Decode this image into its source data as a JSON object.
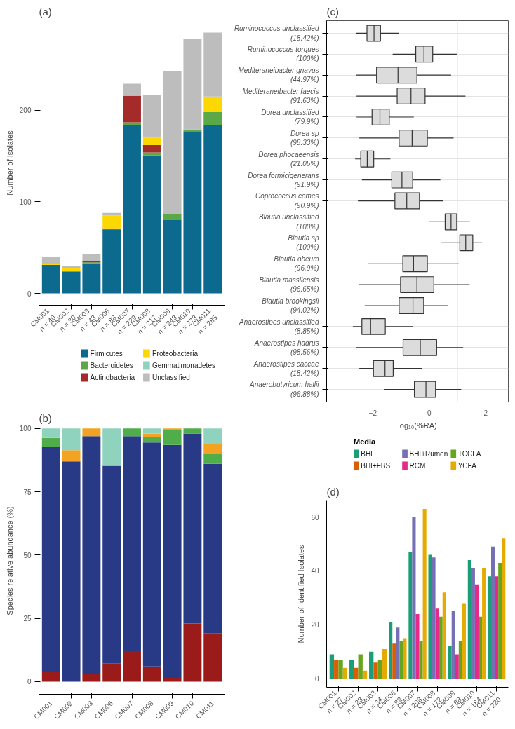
{
  "chart_data": [
    {
      "type": "bar",
      "title": "(a)",
      "stacked": true,
      "ylabel": "Number of Isolates",
      "categories": [
        "CM001\nn = 40",
        "CM002\nn = 30",
        "CM003\nn = 43",
        "CM006\nn = 88",
        "CM007\nn = 229",
        "CM008\nn = 217",
        "CM009\nn = 243",
        "CM010\nn = 278",
        "CM011\nn = 285"
      ],
      "series": [
        {
          "name": "Firmicutes",
          "color": "#0b6a8e",
          "values": [
            31,
            24,
            33,
            70,
            184,
            151,
            80,
            176,
            184
          ]
        },
        {
          "name": "Bacteroidetes",
          "color": "#5aa846",
          "values": [
            null,
            null,
            1,
            null,
            3,
            3,
            7,
            3,
            14
          ]
        },
        {
          "name": "Actinobacteria",
          "color": "#a52a2a",
          "values": [
            null,
            null,
            1,
            1,
            29,
            8,
            null,
            null,
            null
          ]
        },
        {
          "name": "Proteobacteria",
          "color": "#fdd800",
          "values": [
            1,
            4,
            null,
            14,
            1,
            8,
            null,
            null,
            17
          ]
        },
        {
          "name": "Gemmatimonadetes",
          "color": "#8fd3bf",
          "values": [
            null,
            null,
            null,
            null,
            null,
            null,
            null,
            null,
            null
          ]
        },
        {
          "name": "Unclassified",
          "color": "#bdbdbd",
          "values": [
            8,
            2,
            8,
            3,
            12,
            47,
            156,
            99,
            70
          ]
        }
      ],
      "ylim": [
        -13,
        298
      ],
      "yticks": [
        0,
        100,
        200
      ],
      "legend": "bottom"
    },
    {
      "type": "bar",
      "title": "(b)",
      "stacked": true,
      "ylabel": "Species relative abundance (%)",
      "categories": [
        "CM001",
        "CM002",
        "CM003",
        "CM006",
        "CM007",
        "CM008",
        "CM009",
        "CM010",
        "CM011"
      ],
      "series": [
        {
          "color": "#9b1b1b",
          "values": [
            3.7,
            null,
            3,
            7.1,
            12,
            6,
            1.5,
            23,
            19
          ]
        },
        {
          "color": "#283a86",
          "values": [
            89,
            87,
            94,
            78.2,
            85,
            88.5,
            92,
            75,
            67
          ]
        },
        {
          "color": "#4fae4a",
          "values": [
            3.6,
            null,
            null,
            null,
            3,
            2,
            6,
            2,
            4
          ]
        },
        {
          "color": "#f3a321",
          "values": [
            null,
            4.4,
            3,
            null,
            null,
            1.5,
            0.5,
            null,
            4
          ]
        },
        {
          "color": "#8fd3bf",
          "values": [
            3.7,
            8.6,
            null,
            14.7,
            null,
            2,
            null,
            null,
            6
          ]
        }
      ],
      "ylim": [
        -5,
        100.5
      ],
      "yticks": [
        0,
        25,
        50,
        75,
        100
      ]
    },
    {
      "type": "box",
      "title": "(c)",
      "orientation": "horizontal",
      "xlabel": "log₁₀(%RA)",
      "grid": true,
      "xlim": [
        -3.64,
        2.8
      ],
      "xticks": [
        -2,
        0,
        2
      ],
      "categories": [
        "Ruminococcus unclassified\n(18.42%)",
        "Ruminococcus torques\n(100%)",
        "Mediteraneibacter gnavus\n(44.97%)",
        "Mediteraneibacter faecis\n(91.63%)",
        "Dorea unclassified\n(79.9%)",
        "Dorea sp\n(98.33%)",
        "Dorea phocaeensis\n(21.05%)",
        "Dorea formicigenerans\n(91.9%)",
        "Coprococcus comes\n(90.9%)",
        "Blautia unclassified\n(100%)",
        "Blautia sp\n(100%)",
        "Blautia obeum\n(96.9%)",
        "Blautia massilensis\n(96.65%)",
        "Blautia brookingsii\n(94.02%)",
        "Anaerostipes unclassified\n(8.85%)",
        "Anaerostipes hadrus\n(98.56%)",
        "Anaerostipes caccae\n(18.42%)",
        "Anaerobutyricum hallii\n(96.88%)"
      ],
      "series": [
        {
          "color": "#dcdcdc",
          "boxes": [
            {
              "low": -2.61,
              "q1": -2.21,
              "median": -1.96,
              "q3": -1.73,
              "high": -1.09
            },
            {
              "low": -1.3,
              "q1": -0.48,
              "median": -0.19,
              "q3": 0.12,
              "high": 0.97
            },
            {
              "low": -2.59,
              "q1": -1.87,
              "median": -1.11,
              "q3": -0.44,
              "high": 0.77
            },
            {
              "low": -2.58,
              "q1": -1.14,
              "median": -0.65,
              "q3": -0.15,
              "high": 1.28
            },
            {
              "low": -2.58,
              "q1": -2.03,
              "median": -1.75,
              "q3": -1.42,
              "high": -0.55
            },
            {
              "low": -2.48,
              "q1": -1.07,
              "median": -0.61,
              "q3": -0.07,
              "high": 0.86
            },
            {
              "low": -2.63,
              "q1": -2.43,
              "median": -2.2,
              "q3": -1.97,
              "high": -1.38
            },
            {
              "low": -2.39,
              "q1": -1.33,
              "median": -0.97,
              "q3": -0.59,
              "high": 0.39
            },
            {
              "low": -2.53,
              "q1": -1.22,
              "median": -0.8,
              "q3": -0.35,
              "high": 0.5
            },
            {
              "low": 0,
              "q1": 0.56,
              "median": 0.77,
              "q3": 0.97,
              "high": 1.44
            },
            {
              "low": 0.43,
              "q1": 1.08,
              "median": 1.29,
              "q3": 1.54,
              "high": 1.87
            },
            {
              "low": -2.17,
              "q1": -0.94,
              "median": -0.56,
              "q3": -0.07,
              "high": 1.04
            },
            {
              "low": -2.49,
              "q1": -1.02,
              "median": -0.44,
              "q3": 0.16,
              "high": 1.43
            },
            {
              "low": -2.29,
              "q1": -1.07,
              "median": -0.58,
              "q3": -0.2,
              "high": 0.67
            },
            {
              "low": -2.71,
              "q1": -2.39,
              "median": -2.08,
              "q3": -1.56,
              "high": -0.58
            },
            {
              "low": -2.59,
              "q1": -0.93,
              "median": -0.32,
              "q3": 0.26,
              "high": 1.2
            },
            {
              "low": -2.48,
              "q1": -1.98,
              "median": -1.57,
              "q3": -1.28,
              "high": -0.26
            },
            {
              "low": -1.6,
              "q1": -0.53,
              "median": -0.12,
              "q3": 0.22,
              "high": 1.13
            }
          ]
        }
      ]
    },
    {
      "type": "bar",
      "title": "(d)",
      "ylabel": "Number of Identified Isolates",
      "legend_title": "Media",
      "legend": "top",
      "categories": [
        "CM001\nn = 27",
        "CM002\nn = 23",
        "CM003\nn = 34",
        "CM006\nn = 82",
        "CM007\nn = 208",
        "CM008\nn = 172",
        "CM009\nn = 88",
        "CM010\nn = 184",
        "CM011\nn = 220"
      ],
      "series": [
        {
          "name": "BHI",
          "color": "#1b9e77",
          "values": [
            9,
            7,
            10,
            21,
            47,
            46,
            12,
            44,
            38
          ]
        },
        {
          "name": "BHI+FBS",
          "color": "#d95f02",
          "values": [
            7,
            4,
            6,
            13,
            null,
            null,
            null,
            null,
            null
          ]
        },
        {
          "name": "BHI+Rumen",
          "color": "#7570b3",
          "values": [
            null,
            null,
            null,
            19,
            60,
            45,
            25,
            41,
            49
          ]
        },
        {
          "name": "RCM",
          "color": "#e7298a",
          "values": [
            null,
            null,
            null,
            null,
            24,
            26,
            9,
            35,
            38
          ]
        },
        {
          "name": "TCCFA",
          "color": "#66a61e",
          "values": [
            7,
            9,
            7,
            14,
            14,
            23,
            14,
            23,
            43
          ]
        },
        {
          "name": "YCFA",
          "color": "#e6ab02",
          "values": [
            4,
            3,
            11,
            15,
            63,
            32,
            28,
            41,
            52
          ]
        }
      ],
      "ylim": [
        -3.2,
        66
      ],
      "yticks": [
        0,
        20,
        40,
        60
      ]
    }
  ]
}
